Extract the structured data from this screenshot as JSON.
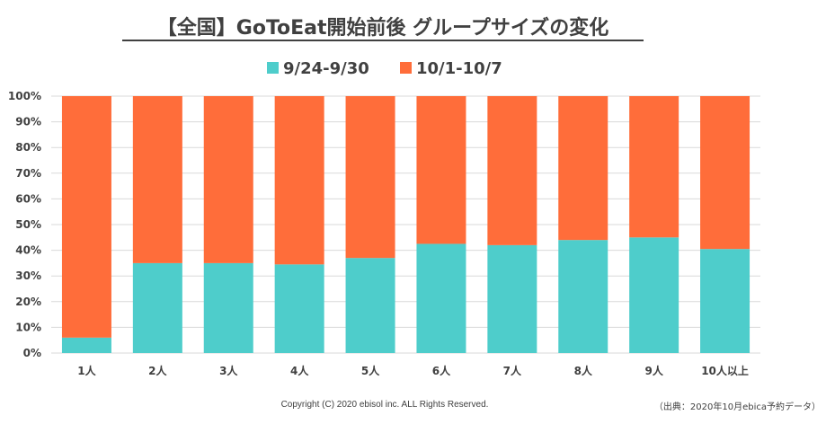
{
  "chart_data": {
    "type": "bar",
    "stacked": true,
    "title": "【全国】GoToEat開始前後 グループサイズの変化",
    "categories": [
      "1人",
      "2人",
      "3人",
      "4人",
      "5人",
      "6人",
      "7人",
      "8人",
      "9人",
      "10人以上"
    ],
    "series": [
      {
        "name": "9/24-9/30",
        "color": "#4ECDCB",
        "values": [
          6,
          35,
          35,
          34.5,
          37,
          42.5,
          42,
          44,
          45,
          40.5
        ]
      },
      {
        "name": "10/1-10/7",
        "color": "#FF6D3A",
        "values": [
          94,
          65,
          65,
          65.5,
          63,
          57.5,
          58,
          56,
          55,
          59.5
        ]
      }
    ],
    "ylim": [
      0,
      100
    ],
    "yticks": [
      "0%",
      "10%",
      "20%",
      "30%",
      "40%",
      "50%",
      "60%",
      "70%",
      "80%",
      "90%",
      "100%"
    ],
    "grid": true,
    "legend_position": "top-center"
  },
  "footer": {
    "copyright": "Copyright (C) 2020 ebisol inc. ALL Rights Reserved.",
    "source": "（出典：2020年10月ebica予約データ）"
  }
}
